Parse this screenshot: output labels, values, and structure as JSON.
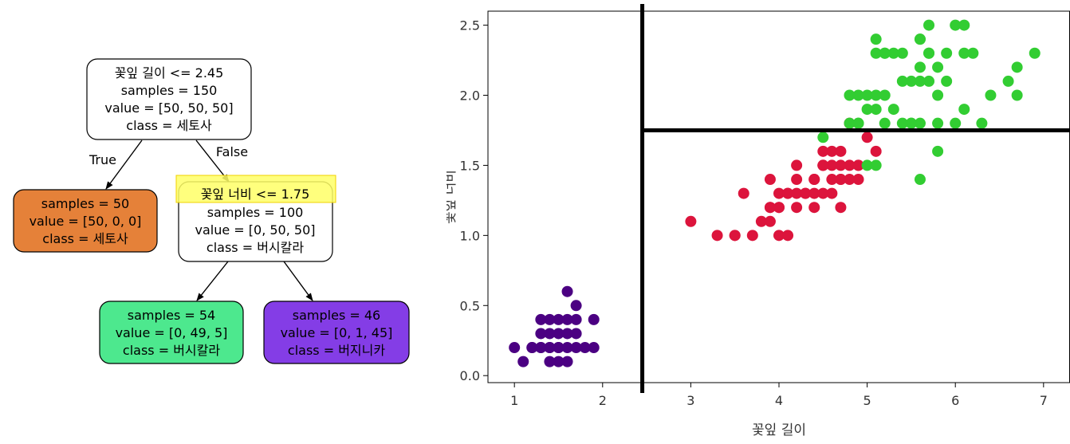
{
  "tree": {
    "root": {
      "lines": [
        "꽃잎 길이 <= 2.45",
        "samples = 150",
        "value = [50, 50, 50]",
        "class = 세토사"
      ],
      "fill": "#ffffff"
    },
    "edge_true_label": "True",
    "edge_false_label": "False",
    "left_leaf": {
      "lines": [
        "samples = 50",
        "value = [50, 0, 0]",
        "class = 세토사"
      ],
      "fill": "#e58139"
    },
    "split": {
      "lines": [
        "꽃잎 너비 <= 1.75",
        "samples = 100",
        "value = [0, 50, 50]",
        "class = 버시칼라"
      ],
      "fill": "#ffffff",
      "highlight": "#ffff66"
    },
    "leaf_versicolor": {
      "lines": [
        "samples = 54",
        "value = [0, 49, 5]",
        "class = 버시칼라"
      ],
      "fill": "#4de88e"
    },
    "leaf_virginica": {
      "lines": [
        "samples = 46",
        "value = [0, 1, 45]",
        "class = 버지니카"
      ],
      "fill": "#843de6"
    }
  },
  "chart_data": {
    "type": "scatter",
    "xlabel": "꽃잎 길이",
    "ylabel": "꽃잎 너비",
    "xlim": [
      0.7,
      7.3
    ],
    "ylim": [
      -0.05,
      2.6
    ],
    "xticks": [
      "1",
      "2",
      "3",
      "4",
      "5",
      "6",
      "7"
    ],
    "yticks": [
      "0.0",
      "0.5",
      "1.0",
      "1.5",
      "2.0",
      "2.5"
    ],
    "grid": false,
    "decision_boundaries": {
      "vertical_x": 2.45,
      "horizontal_y": 1.75
    },
    "series": [
      {
        "color": "#4b0082",
        "points": [
          [
            1.4,
            0.2
          ],
          [
            1.3,
            0.2
          ],
          [
            1.5,
            0.2
          ],
          [
            1.7,
            0.4
          ],
          [
            1.4,
            0.3
          ],
          [
            1.5,
            0.1
          ],
          [
            1.6,
            0.2
          ],
          [
            1.1,
            0.1
          ],
          [
            1.2,
            0.2
          ],
          [
            1.3,
            0.4
          ],
          [
            1.7,
            0.3
          ],
          [
            1.9,
            0.2
          ],
          [
            1.6,
            0.4
          ],
          [
            1.5,
            0.4
          ],
          [
            1.0,
            0.2
          ],
          [
            1.7,
            0.5
          ],
          [
            1.9,
            0.4
          ],
          [
            1.6,
            0.6
          ],
          [
            1.4,
            0.1
          ],
          [
            1.2,
            0.2
          ],
          [
            1.3,
            0.3
          ],
          [
            1.5,
            0.3
          ],
          [
            1.6,
            0.3
          ],
          [
            1.4,
            0.2
          ],
          [
            1.8,
            0.2
          ],
          [
            1.7,
            0.2
          ],
          [
            1.5,
            0.2
          ],
          [
            1.6,
            0.1
          ],
          [
            1.3,
            0.2
          ],
          [
            1.4,
            0.4
          ]
        ]
      },
      {
        "color": "#dc143c",
        "points": [
          [
            4.7,
            1.4
          ],
          [
            4.5,
            1.5
          ],
          [
            4.9,
            1.5
          ],
          [
            4.0,
            1.3
          ],
          [
            4.6,
            1.5
          ],
          [
            3.3,
            1.0
          ],
          [
            3.9,
            1.4
          ],
          [
            3.5,
            1.0
          ],
          [
            4.2,
            1.5
          ],
          [
            4.0,
            1.0
          ],
          [
            4.7,
            1.4
          ],
          [
            3.6,
            1.3
          ],
          [
            4.4,
            1.4
          ],
          [
            4.1,
            1.0
          ],
          [
            4.5,
            1.5
          ],
          [
            3.9,
            1.1
          ],
          [
            4.8,
            1.8
          ],
          [
            4.9,
            1.5
          ],
          [
            4.7,
            1.2
          ],
          [
            4.3,
            1.3
          ],
          [
            4.4,
            1.4
          ],
          [
            5.0,
            1.7
          ],
          [
            4.5,
            1.5
          ],
          [
            3.5,
            1.0
          ],
          [
            3.8,
            1.1
          ],
          [
            3.7,
            1.0
          ],
          [
            3.9,
            1.2
          ],
          [
            5.1,
            1.6
          ],
          [
            4.5,
            1.6
          ],
          [
            4.7,
            1.5
          ],
          [
            4.4,
            1.3
          ],
          [
            4.1,
            1.3
          ],
          [
            4.0,
            1.2
          ],
          [
            4.4,
            1.2
          ],
          [
            4.6,
            1.4
          ],
          [
            4.0,
            1.2
          ],
          [
            3.0,
            1.1
          ],
          [
            4.2,
            1.3
          ],
          [
            4.2,
            1.2
          ],
          [
            4.3,
            1.3
          ],
          [
            4.6,
            1.3
          ],
          [
            4.5,
            1.3
          ],
          [
            4.8,
            1.4
          ],
          [
            3.9,
            1.2
          ],
          [
            4.2,
            1.4
          ],
          [
            4.1,
            1.3
          ],
          [
            4.9,
            1.4
          ],
          [
            4.6,
            1.6
          ],
          [
            4.7,
            1.6
          ],
          [
            4.8,
            1.5
          ]
        ]
      },
      {
        "color": "#32cd32",
        "points": [
          [
            6.0,
            2.5
          ],
          [
            5.1,
            1.9
          ],
          [
            5.9,
            2.1
          ],
          [
            5.6,
            1.8
          ],
          [
            5.8,
            2.2
          ],
          [
            6.6,
            2.1
          ],
          [
            4.5,
            1.7
          ],
          [
            6.3,
            1.8
          ],
          [
            5.8,
            1.8
          ],
          [
            6.1,
            2.5
          ],
          [
            5.1,
            2.0
          ],
          [
            5.3,
            1.9
          ],
          [
            5.5,
            2.1
          ],
          [
            5.0,
            2.0
          ],
          [
            5.1,
            2.4
          ],
          [
            5.3,
            2.3
          ],
          [
            5.5,
            1.8
          ],
          [
            6.7,
            2.2
          ],
          [
            6.9,
            2.3
          ],
          [
            5.0,
            1.5
          ],
          [
            5.7,
            2.3
          ],
          [
            4.9,
            2.0
          ],
          [
            6.7,
            2.0
          ],
          [
            4.9,
            1.8
          ],
          [
            5.7,
            2.1
          ],
          [
            6.0,
            1.8
          ],
          [
            4.8,
            1.8
          ],
          [
            4.9,
            1.8
          ],
          [
            5.6,
            2.1
          ],
          [
            5.8,
            1.6
          ],
          [
            6.1,
            1.9
          ],
          [
            6.4,
            2.0
          ],
          [
            5.6,
            2.2
          ],
          [
            5.1,
            1.5
          ],
          [
            5.6,
            1.4
          ],
          [
            6.1,
            2.3
          ],
          [
            5.6,
            2.4
          ],
          [
            5.5,
            1.8
          ],
          [
            5.4,
            2.1
          ],
          [
            5.6,
            2.4
          ],
          [
            5.2,
            2.3
          ],
          [
            5.1,
            2.3
          ],
          [
            5.9,
            2.3
          ],
          [
            5.7,
            2.5
          ],
          [
            5.2,
            2.0
          ],
          [
            5.4,
            2.3
          ],
          [
            5.0,
            1.9
          ],
          [
            5.2,
            2.3
          ],
          [
            4.8,
            2.0
          ],
          [
            5.8,
            2.0
          ],
          [
            6.2,
            2.3
          ],
          [
            5.4,
            1.8
          ],
          [
            5.7,
            2.3
          ],
          [
            5.2,
            1.8
          ]
        ]
      }
    ]
  }
}
